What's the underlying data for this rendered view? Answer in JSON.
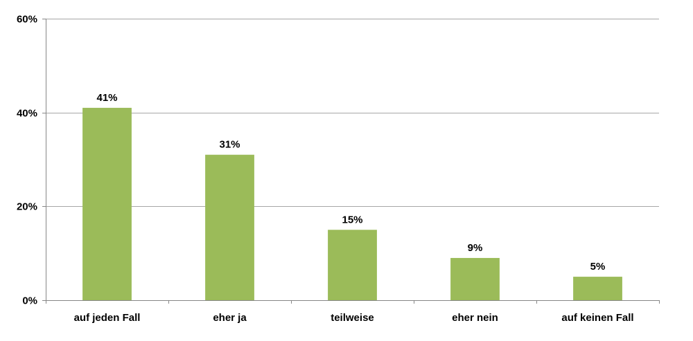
{
  "chart_data": {
    "type": "bar",
    "title": "",
    "xlabel": "",
    "ylabel": "",
    "categories": [
      "auf jeden Fall",
      "eher ja",
      "teilweise",
      "eher nein",
      "auf keinen Fall"
    ],
    "values": [
      41,
      31,
      15,
      9,
      5
    ],
    "data_labels": [
      "41%",
      "31%",
      "15%",
      "9%",
      "5%"
    ],
    "ylim": [
      0,
      60
    ],
    "yticks": [
      0,
      20,
      40,
      60
    ],
    "ytick_labels": [
      "0%",
      "20%",
      "40%",
      "60%"
    ],
    "grid": true,
    "legend": "none",
    "colors": {
      "bar": "#9bbb59",
      "grid": "#a6a6a6",
      "axis": "#868686"
    }
  }
}
